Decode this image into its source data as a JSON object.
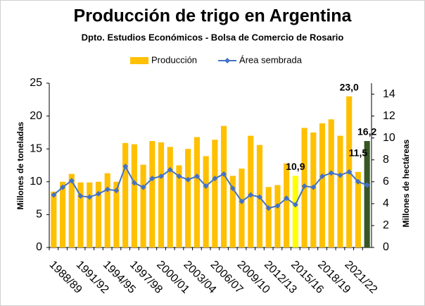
{
  "chart_data": {
    "type": "bar_line",
    "title": "Producción de trigo en Argentina",
    "subtitle": "Dpto. Estudios Económicos - Bolsa de Comercio de Rosario",
    "y_label": "Millones de toneladas",
    "y2_label": "Millones de hectáreas",
    "categories": [
      "1988/89",
      null,
      null,
      "1991/92",
      null,
      null,
      "1994/95",
      null,
      null,
      "1997/98",
      null,
      null,
      "2000/01",
      null,
      null,
      "2003/04",
      null,
      null,
      "2006/07",
      null,
      null,
      "2009/10",
      null,
      null,
      "2012/13",
      null,
      null,
      "2015/16",
      null,
      null,
      "2018/19",
      null,
      null,
      "2021/22",
      null,
      null
    ],
    "series": [
      {
        "name": "Producción",
        "color": "#ffc000",
        "point_colors": [
          null,
          null,
          null,
          null,
          null,
          null,
          null,
          null,
          null,
          null,
          null,
          null,
          null,
          null,
          null,
          null,
          null,
          null,
          null,
          null,
          null,
          null,
          null,
          null,
          null,
          null,
          null,
          "#ffff00",
          null,
          null,
          null,
          null,
          null,
          null,
          null,
          "#375623"
        ],
        "values": [
          8.5,
          10,
          11.2,
          9.9,
          9.9,
          10,
          11.3,
          10,
          15.9,
          15.7,
          12.6,
          16.2,
          16,
          15.3,
          12.5,
          15,
          16.8,
          13.9,
          16.4,
          18.5,
          10.9,
          12,
          17,
          15.6,
          9.2,
          9.5,
          12.8,
          10.9,
          18.2,
          17.5,
          18.9,
          19.5,
          17,
          23,
          11.5,
          16.2
        ],
        "value_labels": [
          null,
          null,
          null,
          null,
          null,
          null,
          null,
          null,
          null,
          null,
          null,
          null,
          null,
          null,
          null,
          null,
          null,
          null,
          null,
          null,
          null,
          null,
          null,
          null,
          null,
          null,
          null,
          "10,9",
          null,
          null,
          null,
          null,
          null,
          "23,0",
          "11,5",
          "16,2"
        ]
      },
      {
        "name": "Área sembrada",
        "color": "#4472c4",
        "axis": "y2",
        "values": [
          4.8,
          5.5,
          6.1,
          4.7,
          4.6,
          4.9,
          5.3,
          5.2,
          7.4,
          5.9,
          5.5,
          6.3,
          6.5,
          7.1,
          6.5,
          6.2,
          6.5,
          5.6,
          6.3,
          6.7,
          5.4,
          4.2,
          4.8,
          4.6,
          3.6,
          3.8,
          4.5,
          3.9,
          5.6,
          5.5,
          6.5,
          6.8,
          6.6,
          6.9,
          6.0,
          5.7
        ]
      }
    ],
    "ylim": [
      0,
      25
    ],
    "yticks": [
      0,
      5,
      10,
      15,
      20,
      25
    ],
    "y2lim": [
      0,
      15
    ],
    "y2ticks": [
      0,
      2,
      4,
      6,
      8,
      10,
      12,
      14
    ],
    "legend": "top"
  }
}
